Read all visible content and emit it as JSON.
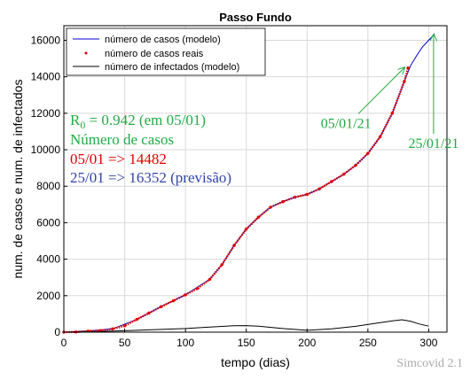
{
  "chart_data": {
    "type": "line",
    "title": "Passo Fundo",
    "xlabel": "tempo (dias)",
    "ylabel": "num. de casos e num. de infectados",
    "xlim": [
      0,
      315
    ],
    "ylim": [
      0,
      16800
    ],
    "xticks": [
      0,
      50,
      100,
      150,
      200,
      250,
      300
    ],
    "yticks": [
      0,
      2000,
      4000,
      6000,
      8000,
      10000,
      12000,
      14000,
      16000
    ],
    "grid": true,
    "legend_position": "top-left",
    "legend": [
      "número de casos (modelo)",
      "número de casos reais",
      "número de infectados (modelo)"
    ],
    "series": [
      {
        "name": "número de casos (modelo)",
        "style": "line",
        "color": "#0000cc",
        "x": [
          0,
          20,
          40,
          60,
          80,
          100,
          120,
          130,
          140,
          150,
          160,
          170,
          180,
          190,
          200,
          210,
          220,
          230,
          240,
          250,
          260,
          270,
          280,
          285,
          290,
          295,
          300,
          305
        ],
        "y": [
          0,
          60,
          180,
          700,
          1400,
          2050,
          2900,
          3700,
          4750,
          5650,
          6300,
          6850,
          7150,
          7400,
          7550,
          7850,
          8250,
          8650,
          9150,
          9800,
          10700,
          12000,
          13750,
          14600,
          15150,
          15650,
          16000,
          16352
        ]
      },
      {
        "name": "número de casos reais",
        "style": "points",
        "color": "#dd0000",
        "x": [
          0,
          10,
          20,
          30,
          40,
          50,
          60,
          70,
          80,
          90,
          100,
          110,
          120,
          130,
          140,
          150,
          160,
          170,
          180,
          190,
          200,
          210,
          220,
          230,
          240,
          250,
          260,
          270,
          280,
          283
        ],
        "y": [
          0,
          10,
          60,
          90,
          180,
          350,
          700,
          1050,
          1400,
          1720,
          2050,
          2400,
          2900,
          3700,
          4750,
          5650,
          6300,
          6850,
          7150,
          7400,
          7550,
          7850,
          8250,
          8650,
          9150,
          9800,
          10700,
          12000,
          13750,
          14482
        ]
      },
      {
        "name": "número de infectados (modelo)",
        "style": "line",
        "color": "#000000",
        "x": [
          0,
          20,
          50,
          80,
          100,
          120,
          140,
          150,
          160,
          180,
          200,
          220,
          240,
          260,
          270,
          278,
          285,
          292,
          300
        ],
        "y": [
          0,
          30,
          80,
          150,
          200,
          280,
          350,
          360,
          330,
          200,
          100,
          180,
          320,
          520,
          620,
          680,
          600,
          450,
          330
        ]
      }
    ],
    "annotations": [
      {
        "text": "05/01/21",
        "color": "#22aa44",
        "x": 232,
        "y": 11200,
        "arrow_to": [
          280,
          14500
        ]
      },
      {
        "text": "25/01/21",
        "color": "#22aa44",
        "x": 304,
        "y": 10100,
        "arrow_to": [
          304,
          16300
        ]
      }
    ],
    "info": {
      "r0_symbol": "R",
      "r0_sub": "0",
      "r0_text": " = 0.942 (em 05/01)",
      "cases_title": "Número de casos",
      "line_real": "05/01 => 14482",
      "line_forecast": "25/01 => 16352 (previsão)",
      "color_r0": "#22aa44",
      "color_title": "#22aa44",
      "color_real": "#dd0000",
      "color_forecast": "#3344aa"
    },
    "watermark": "Simcovid 2.1"
  }
}
